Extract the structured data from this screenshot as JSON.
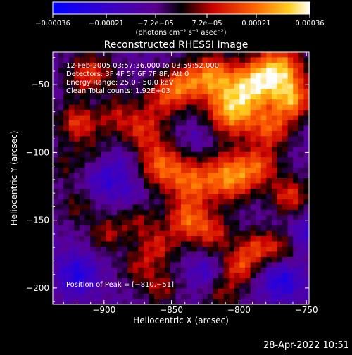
{
  "chart_data": {
    "type": "heatmap",
    "title": "Reconstructed RHESSI Image",
    "xlabel": "Heliocentric X (arcsec)",
    "ylabel": "Heliocentric Y (arcsec)",
    "xlim": [
      -938,
      -748
    ],
    "ylim": [
      -212,
      -26
    ],
    "x_ticks": [
      {
        "value": -900,
        "label": "−900"
      },
      {
        "value": -850,
        "label": "−850"
      },
      {
        "value": -800,
        "label": "−800"
      },
      {
        "value": -750,
        "label": "−750"
      }
    ],
    "y_ticks": [
      {
        "value": -50,
        "label": "−50"
      },
      {
        "value": -100,
        "label": "−100"
      },
      {
        "value": -150,
        "label": "−150"
      },
      {
        "value": -200,
        "label": "−200"
      }
    ],
    "colorbar": {
      "range": [
        -0.00036,
        0.00036
      ],
      "ticks": [
        {
          "value": -0.00036,
          "label": "−0.00036"
        },
        {
          "value": -0.00021,
          "label": "−0.00021"
        },
        {
          "value": -7.2e-05,
          "label": "−7.2e−05"
        },
        {
          "value": 7.2e-05,
          "label": "7.2e−05"
        },
        {
          "value": 0.00021,
          "label": "0.00021"
        },
        {
          "value": 0.00036,
          "label": "0.00036"
        }
      ],
      "unit_label": "(photons cm⁻² s⁻¹ asec⁻²)"
    },
    "annotations": {
      "time": "12-Feb-2005 03:57:36.000 to 03:59:52.000",
      "detectors": "Detectors: 3F 4F 5F 6F 7F 8F, Att 0",
      "energy": "Energy Range: 25.0 - 50.0 keV",
      "clean": "Clean    Total counts: 1.92E+03",
      "peak": "Position of Peak = [−810,−51]"
    },
    "blobs": [
      {
        "x": -910,
        "y": -44,
        "v": 0.00024,
        "s": 12
      },
      {
        "x": -920,
        "y": -78,
        "v": 0.00022,
        "s": 10
      },
      {
        "x": -895,
        "y": -70,
        "v": 0.00016,
        "s": 11
      },
      {
        "x": -872,
        "y": -84,
        "v": 0.0002,
        "s": 12
      },
      {
        "x": -856,
        "y": -60,
        "v": 0.00018,
        "s": 11
      },
      {
        "x": -842,
        "y": -50,
        "v": 0.00022,
        "s": 10
      },
      {
        "x": -820,
        "y": -44,
        "v": 0.0003,
        "s": 12
      },
      {
        "x": -805,
        "y": -70,
        "v": 0.00034,
        "s": 13
      },
      {
        "x": -790,
        "y": -50,
        "v": 0.0003,
        "s": 12
      },
      {
        "x": -770,
        "y": -40,
        "v": 0.00036,
        "s": 13
      },
      {
        "x": -760,
        "y": -62,
        "v": 0.00028,
        "s": 10
      },
      {
        "x": -776,
        "y": -82,
        "v": 0.00024,
        "s": 11
      },
      {
        "x": -858,
        "y": -110,
        "v": 0.00026,
        "s": 12
      },
      {
        "x": -835,
        "y": -122,
        "v": 0.00024,
        "s": 12
      },
      {
        "x": -806,
        "y": -118,
        "v": 0.00032,
        "s": 13
      },
      {
        "x": -784,
        "y": -110,
        "v": 0.0002,
        "s": 10
      },
      {
        "x": -762,
        "y": -132,
        "v": 0.00022,
        "s": 10
      },
      {
        "x": -920,
        "y": -140,
        "v": 0.00012,
        "s": 9
      },
      {
        "x": -898,
        "y": -160,
        "v": 0.00016,
        "s": 9
      },
      {
        "x": -875,
        "y": -150,
        "v": 0.00014,
        "s": 10
      },
      {
        "x": -860,
        "y": -170,
        "v": 0.00018,
        "s": 10
      },
      {
        "x": -838,
        "y": -150,
        "v": 0.00026,
        "s": 11
      },
      {
        "x": -818,
        "y": -160,
        "v": 0.00018,
        "s": 10
      },
      {
        "x": -800,
        "y": -185,
        "v": 0.00022,
        "s": 9
      },
      {
        "x": -788,
        "y": -170,
        "v": 0.0002,
        "s": 9
      },
      {
        "x": -770,
        "y": -170,
        "v": 0.00016,
        "s": 9
      },
      {
        "x": -812,
        "y": -205,
        "v": 0.00014,
        "s": 9
      },
      {
        "x": -858,
        "y": -200,
        "v": 0.00016,
        "s": 9
      },
      {
        "x": -875,
        "y": -185,
        "v": 0.00014,
        "s": 9
      },
      {
        "x": -930,
        "y": -110,
        "v": 0.0001,
        "s": 9
      },
      {
        "x": -908,
        "y": -100,
        "v": 8e-05,
        "s": 10
      },
      {
        "x": -920,
        "y": -190,
        "v": -0.00018,
        "s": 10
      },
      {
        "x": -900,
        "y": -120,
        "v": -0.00012,
        "s": 9
      },
      {
        "x": -905,
        "y": -60,
        "v": -0.00012,
        "s": 9
      },
      {
        "x": -885,
        "y": -105,
        "v": -8e-05,
        "s": 10
      },
      {
        "x": -768,
        "y": -195,
        "v": -0.00018,
        "s": 10
      },
      {
        "x": -750,
        "y": -160,
        "v": -0.00012,
        "s": 9
      },
      {
        "x": -825,
        "y": -188,
        "v": -0.0001,
        "s": 8
      },
      {
        "x": -880,
        "y": -130,
        "v": -8e-05,
        "s": 9
      },
      {
        "x": -830,
        "y": -90,
        "v": -6e-05,
        "s": 8
      }
    ]
  },
  "footer": {
    "timestamp": "28-Apr-2022 10:51"
  }
}
